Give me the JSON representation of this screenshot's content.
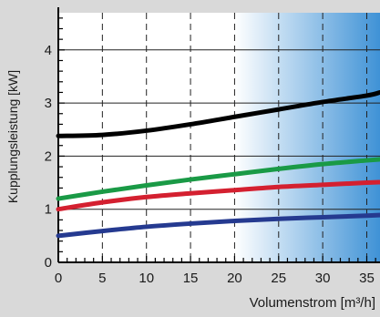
{
  "chart_data": {
    "type": "line",
    "title": "",
    "xlabel": "Volumenstrom [m³/h]",
    "ylabel": "Kupplungsleistung [kW]",
    "xlim": [
      0,
      36.5
    ],
    "ylim": [
      0,
      4.7
    ],
    "x_ticks": [
      0,
      5,
      10,
      15,
      20,
      25,
      30,
      35
    ],
    "y_ticks": [
      0,
      1,
      2,
      3,
      4
    ],
    "x_tick_labels": [
      "0",
      "5",
      "10",
      "15",
      "20",
      "25",
      "30",
      "35"
    ],
    "y_tick_labels": [
      "0",
      "1",
      "2",
      "3",
      "4"
    ],
    "x_minor_step": 1,
    "y_minor_step": 0.2,
    "grid": true,
    "legend": "none",
    "shaded_region": {
      "x_start": 20,
      "x_end": 36.5,
      "color_start": "#ffffff",
      "color_end": "#3f92d6"
    },
    "series": [
      {
        "color": "#000000",
        "x": [
          0,
          5,
          10,
          15,
          20,
          25,
          30,
          35,
          36.5
        ],
        "y": [
          2.38,
          2.4,
          2.48,
          2.6,
          2.74,
          2.88,
          3.02,
          3.14,
          3.2
        ]
      },
      {
        "color": "#1a9a46",
        "x": [
          0,
          5,
          10,
          15,
          20,
          25,
          30,
          35,
          36.5
        ],
        "y": [
          1.2,
          1.33,
          1.45,
          1.56,
          1.66,
          1.76,
          1.85,
          1.92,
          1.94
        ]
      },
      {
        "color": "#d42030",
        "x": [
          0,
          5,
          10,
          15,
          20,
          25,
          30,
          35,
          36.5
        ],
        "y": [
          1.0,
          1.13,
          1.23,
          1.3,
          1.36,
          1.42,
          1.46,
          1.5,
          1.51
        ]
      },
      {
        "color": "#253a90",
        "x": [
          0,
          5,
          10,
          15,
          20,
          25,
          30,
          35,
          36.5
        ],
        "y": [
          0.5,
          0.59,
          0.67,
          0.73,
          0.78,
          0.82,
          0.85,
          0.88,
          0.89
        ]
      }
    ]
  }
}
